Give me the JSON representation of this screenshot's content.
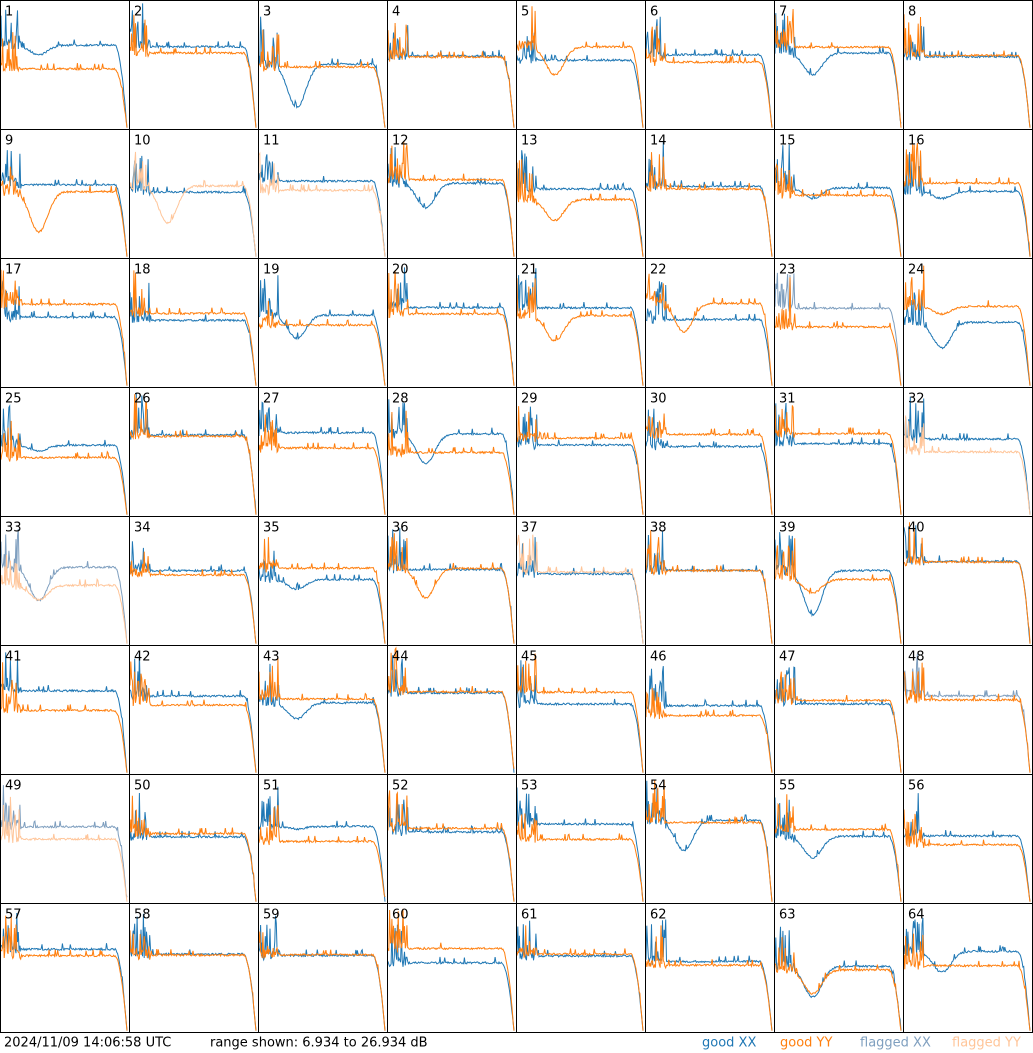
{
  "panels": [
    {
      "label": "1",
      "xx": "good",
      "yy": "good"
    },
    {
      "label": "2",
      "xx": "good",
      "yy": "good"
    },
    {
      "label": "3",
      "xx": "good",
      "yy": "good"
    },
    {
      "label": "4",
      "xx": "good",
      "yy": "good"
    },
    {
      "label": "5",
      "xx": "good",
      "yy": "good"
    },
    {
      "label": "6",
      "xx": "good",
      "yy": "good"
    },
    {
      "label": "7",
      "xx": "good",
      "yy": "good"
    },
    {
      "label": "8",
      "xx": "good",
      "yy": "good"
    },
    {
      "label": "9",
      "xx": "good",
      "yy": "good"
    },
    {
      "label": "10",
      "xx": "good",
      "yy": "flagged"
    },
    {
      "label": "11",
      "xx": "good",
      "yy": "flagged"
    },
    {
      "label": "12",
      "xx": "good",
      "yy": "good"
    },
    {
      "label": "13",
      "xx": "good",
      "yy": "good"
    },
    {
      "label": "14",
      "xx": "good",
      "yy": "good"
    },
    {
      "label": "15",
      "xx": "good",
      "yy": "good"
    },
    {
      "label": "16",
      "xx": "good",
      "yy": "good"
    },
    {
      "label": "17",
      "xx": "good",
      "yy": "good"
    },
    {
      "label": "18",
      "xx": "good",
      "yy": "good"
    },
    {
      "label": "19",
      "xx": "good",
      "yy": "good"
    },
    {
      "label": "20",
      "xx": "good",
      "yy": "good"
    },
    {
      "label": "21",
      "xx": "good",
      "yy": "good"
    },
    {
      "label": "22",
      "xx": "good",
      "yy": "good"
    },
    {
      "label": "23",
      "xx": "flagged",
      "yy": "good"
    },
    {
      "label": "24",
      "xx": "good",
      "yy": "good"
    },
    {
      "label": "25",
      "xx": "good",
      "yy": "good"
    },
    {
      "label": "26",
      "xx": "good",
      "yy": "good"
    },
    {
      "label": "27",
      "xx": "good",
      "yy": "good"
    },
    {
      "label": "28",
      "xx": "good",
      "yy": "good"
    },
    {
      "label": "29",
      "xx": "good",
      "yy": "good"
    },
    {
      "label": "30",
      "xx": "good",
      "yy": "good"
    },
    {
      "label": "31",
      "xx": "good",
      "yy": "good"
    },
    {
      "label": "32",
      "xx": "good",
      "yy": "flagged"
    },
    {
      "label": "33",
      "xx": "flagged",
      "yy": "flagged"
    },
    {
      "label": "34",
      "xx": "good",
      "yy": "good"
    },
    {
      "label": "35",
      "xx": "good",
      "yy": "good"
    },
    {
      "label": "36",
      "xx": "good",
      "yy": "good"
    },
    {
      "label": "37",
      "xx": "good",
      "yy": "flagged"
    },
    {
      "label": "38",
      "xx": "good",
      "yy": "good"
    },
    {
      "label": "39",
      "xx": "good",
      "yy": "good"
    },
    {
      "label": "40",
      "xx": "good",
      "yy": "good"
    },
    {
      "label": "41",
      "xx": "good",
      "yy": "good"
    },
    {
      "label": "42",
      "xx": "good",
      "yy": "good"
    },
    {
      "label": "43",
      "xx": "good",
      "yy": "good"
    },
    {
      "label": "44",
      "xx": "good",
      "yy": "good"
    },
    {
      "label": "45",
      "xx": "good",
      "yy": "good"
    },
    {
      "label": "46",
      "xx": "good",
      "yy": "good"
    },
    {
      "label": "47",
      "xx": "good",
      "yy": "good"
    },
    {
      "label": "48",
      "xx": "flagged",
      "yy": "good"
    },
    {
      "label": "49",
      "xx": "flagged",
      "yy": "flagged"
    },
    {
      "label": "50",
      "xx": "good",
      "yy": "good"
    },
    {
      "label": "51",
      "xx": "good",
      "yy": "good"
    },
    {
      "label": "52",
      "xx": "good",
      "yy": "good"
    },
    {
      "label": "53",
      "xx": "good",
      "yy": "good"
    },
    {
      "label": "54",
      "xx": "good",
      "yy": "good"
    },
    {
      "label": "55",
      "xx": "good",
      "yy": "good"
    },
    {
      "label": "56",
      "xx": "good",
      "yy": "good"
    },
    {
      "label": "57",
      "xx": "good",
      "yy": "good"
    },
    {
      "label": "58",
      "xx": "good",
      "yy": "good"
    },
    {
      "label": "59",
      "xx": "good",
      "yy": "good"
    },
    {
      "label": "60",
      "xx": "good",
      "yy": "good"
    },
    {
      "label": "61",
      "xx": "good",
      "yy": "good"
    },
    {
      "label": "62",
      "xx": "good",
      "yy": "good"
    },
    {
      "label": "63",
      "xx": "good",
      "yy": "good"
    },
    {
      "label": "64",
      "xx": "good",
      "yy": "good"
    }
  ],
  "footer": {
    "timestamp": "2024/11/09 14:06:58 UTC",
    "range": "range shown: 6.934 to 26.934 dB"
  },
  "legend": [
    {
      "label": "good XX",
      "state": "good",
      "pol": "xx",
      "color": "#1f77b4"
    },
    {
      "label": "good YY",
      "state": "good",
      "pol": "yy",
      "color": "#ff7f0e"
    },
    {
      "label": "flagged XX",
      "state": "flagged",
      "pol": "xx",
      "color": "#7f9fbf"
    },
    {
      "label": "flagged YY",
      "state": "flagged",
      "pol": "yy",
      "color": "#ffc599"
    }
  ]
}
